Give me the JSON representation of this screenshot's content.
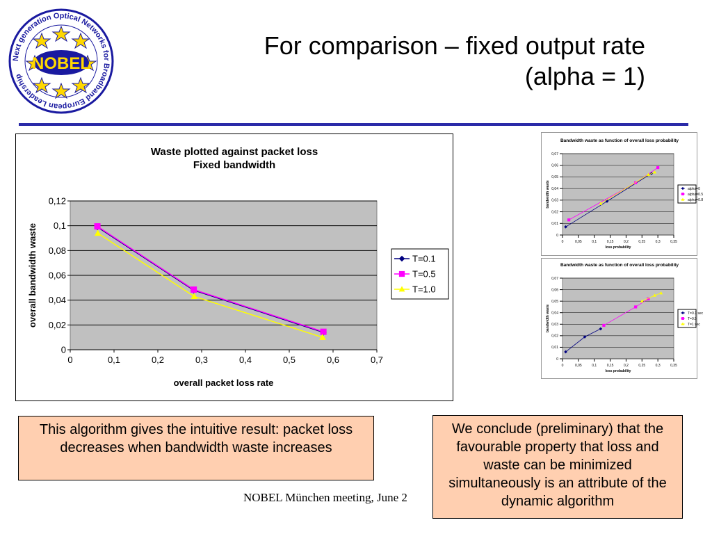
{
  "slide": {
    "title_line1": "For comparison – fixed output rate",
    "title_line2": "(alpha = 1)",
    "logo_text": "NOBEL",
    "logo_ring_text": "Next generation Optical Networks for Broadband European Leadership",
    "footer": "NOBEL München meeting, June 2",
    "box_left": "This algorithm gives the intuitive result: packet loss decreases when bandwidth waste increases",
    "box_right": "We conclude (preliminary) that the favourable property that loss and waste can be minimized simultaneously is an attribute of the dynamic algorithm",
    "colors": {
      "rule": "#2a2aa8",
      "box_fill": "#ffcfb0",
      "plot_bg": "#c0c0c0"
    }
  },
  "chart_data": [
    {
      "type": "line",
      "title": "Waste plotted against packet loss",
      "subtitle": "Fixed bandwidth",
      "xlabel": "overall packet loss rate",
      "ylabel": "overall bandwidth waste",
      "xlim": [
        0,
        0.7
      ],
      "ylim": [
        0,
        0.12
      ],
      "xticks": [
        "0",
        "0,1",
        "0,2",
        "0,3",
        "0,4",
        "0,5",
        "0,6",
        "0,7"
      ],
      "yticks": [
        "0",
        "0,02",
        "0,04",
        "0,06",
        "0,08",
        "0,1",
        "0,12"
      ],
      "legend_position": "right",
      "series": [
        {
          "name": "T=0.1",
          "color": "#000080",
          "marker": "diamond",
          "x": [
            0.062,
            0.282,
            0.578
          ],
          "y": [
            0.099,
            0.048,
            0.014
          ]
        },
        {
          "name": "T=0.5",
          "color": "#ff00ff",
          "marker": "square",
          "x": [
            0.062,
            0.282,
            0.578
          ],
          "y": [
            0.0995,
            0.0485,
            0.0145
          ]
        },
        {
          "name": "T=1.0",
          "color": "#ffff00",
          "marker": "triangle",
          "x": [
            0.063,
            0.283,
            0.576
          ],
          "y": [
            0.094,
            0.043,
            0.01
          ]
        }
      ]
    },
    {
      "type": "scatter",
      "title": "Bandwidth waste as function of overall loss probability",
      "xlabel": "loss probability",
      "ylabel": "bandwidth waste",
      "xlim": [
        0,
        0.35
      ],
      "ylim": [
        0,
        0.07
      ],
      "xticks": [
        "0",
        "0,05",
        "0,1",
        "0,15",
        "0,2",
        "0,25",
        "0,3",
        "0,35"
      ],
      "yticks": [
        "0",
        "0,01",
        "0,02",
        "0,03",
        "0,04",
        "0,05",
        "0,06",
        "0,07"
      ],
      "legend_position": "right",
      "series": [
        {
          "name": "alpha=0",
          "color": "#000080",
          "marker": "diamond",
          "x": [
            0.01,
            0.14,
            0.28
          ],
          "y": [
            0.007,
            0.029,
            0.053
          ]
        },
        {
          "name": "alpha=0.5",
          "color": "#ff00ff",
          "marker": "square",
          "x": [
            0.02,
            0.23,
            0.3
          ],
          "y": [
            0.013,
            0.045,
            0.058
          ]
        },
        {
          "name": "alpha=0.8",
          "color": "#ffff00",
          "marker": "triangle",
          "x": [
            0.12,
            0.27,
            0.29
          ],
          "y": [
            0.027,
            0.052,
            0.054
          ]
        }
      ]
    },
    {
      "type": "scatter",
      "title": "Bandwidth waste as function of overall loss probability",
      "xlabel": "loss probability",
      "ylabel": "bandwidth waste",
      "xlim": [
        0,
        0.35
      ],
      "ylim": [
        0,
        0.07
      ],
      "xticks": [
        "0",
        "0,05",
        "0,1",
        "0,15",
        "0,2",
        "0,25",
        "0,3",
        "0,35"
      ],
      "yticks": [
        "0",
        "0,01",
        "0,02",
        "0,03",
        "0,04",
        "0,05",
        "0,06",
        "0,07"
      ],
      "legend_position": "right",
      "series": [
        {
          "name": "T=0.1 sec",
          "color": "#000080",
          "marker": "diamond",
          "x": [
            0.01,
            0.07,
            0.12
          ],
          "y": [
            0.006,
            0.019,
            0.026
          ]
        },
        {
          "name": "T=0.5",
          "color": "#ff00ff",
          "marker": "square",
          "x": [
            0.13,
            0.23,
            0.27
          ],
          "y": [
            0.029,
            0.045,
            0.052
          ]
        },
        {
          "name": "T=1 sec",
          "color": "#ffff00",
          "marker": "triangle",
          "x": [
            0.25,
            0.29,
            0.31
          ],
          "y": [
            0.05,
            0.055,
            0.057
          ]
        }
      ]
    }
  ]
}
